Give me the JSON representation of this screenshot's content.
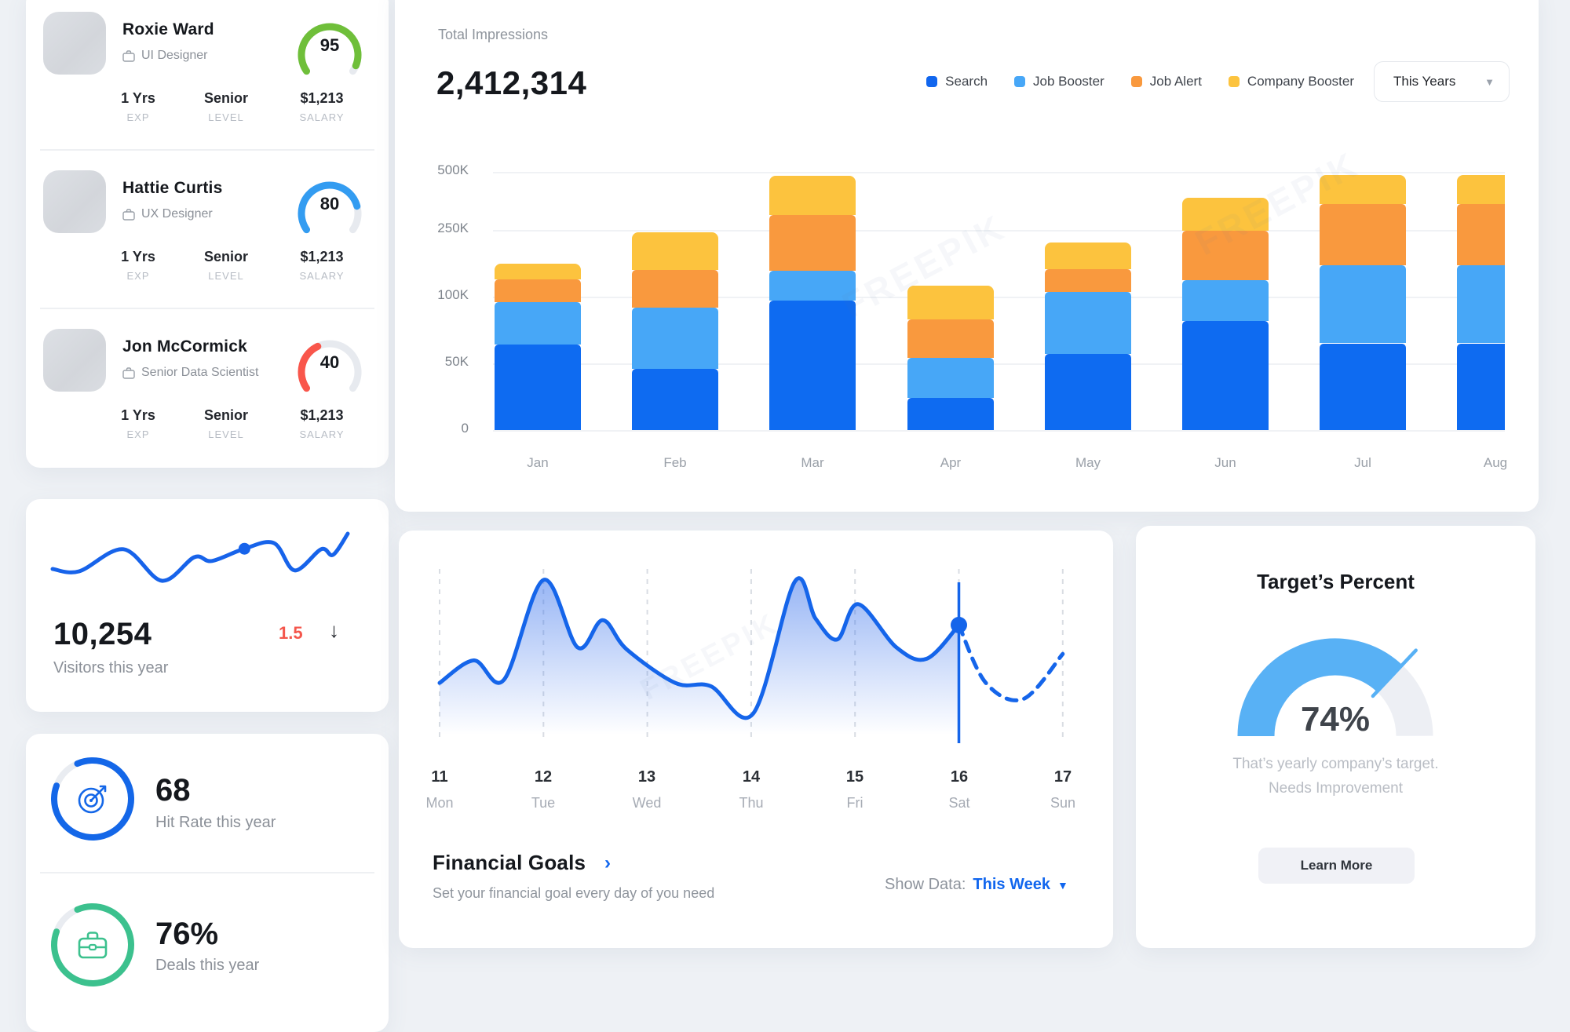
{
  "colors": {
    "accent_blue": "#1166ee",
    "light_blue": "#47a7f7",
    "orange": "#f9993e",
    "yellow": "#fcc33e",
    "green": "#6fbf3a",
    "red": "#f9564b",
    "emerald": "#3cc18e",
    "sky_blue": "#58b1f5",
    "gauge_track": "#e7eaef",
    "delta_red": "#f4564c",
    "spark_blue": "#1763ea"
  },
  "sidebar": {
    "employees": [
      {
        "name": "Roxie Ward",
        "role": "UI Designer",
        "exp": "1 Yrs",
        "exp_label": "EXP",
        "level": "Senior",
        "level_label": "LEVEL",
        "salary": "$1,213",
        "salary_label": "SALARY",
        "score": "95",
        "score_value": 95,
        "score_color": "#6fbf3a"
      },
      {
        "name": "Hattie Curtis",
        "role": "UX Designer",
        "exp": "1 Yrs",
        "exp_label": "EXP",
        "level": "Senior",
        "level_label": "LEVEL",
        "salary": "$1,213",
        "salary_label": "SALARY",
        "score": "80",
        "score_value": 80,
        "score_color": "#339cf1"
      },
      {
        "name": "Jon McCormick",
        "role": "Senior Data Scientist",
        "exp": "1 Yrs",
        "exp_label": "EXP",
        "level": "Senior",
        "level_label": "LEVEL",
        "salary": "$1,213",
        "salary_label": "SALARY",
        "score": "40",
        "score_value": 40,
        "score_color": "#f9564b"
      }
    ],
    "visitors": {
      "value": "10,254",
      "label": "Visitors this year",
      "delta": "1.5",
      "delta_direction": "down"
    },
    "hit_rate": {
      "value": "68",
      "label": "Hit Rate this year",
      "ring_percent": 87,
      "color": "#1467e8",
      "icon": "target-icon"
    },
    "deals": {
      "value": "76%",
      "label": "Deals this year",
      "ring_percent": 87,
      "color": "#3cc18e",
      "icon": "briefcase-icon"
    }
  },
  "impressions": {
    "title": "Total Impressions",
    "total": "2,412,314",
    "period": "This Years",
    "legend": [
      {
        "label": "Search",
        "color": "#1166ee"
      },
      {
        "label": "Job Booster",
        "color": "#47a7f7"
      },
      {
        "label": "Job Alert",
        "color": "#f9993e"
      },
      {
        "label": "Company Booster",
        "color": "#fcc33e"
      }
    ]
  },
  "financial": {
    "title": "Financial Goals",
    "subtitle": "Set your financial goal every day of you need",
    "show_data_label": "Show Data:",
    "show_data_value": "This Week",
    "days": [
      {
        "num": "11",
        "name": "Mon"
      },
      {
        "num": "12",
        "name": "Tue"
      },
      {
        "num": "13",
        "name": "Wed"
      },
      {
        "num": "14",
        "name": "Thu"
      },
      {
        "num": "15",
        "name": "Fri"
      },
      {
        "num": "16",
        "name": "Sat"
      },
      {
        "num": "17",
        "name": "Sun"
      }
    ]
  },
  "target": {
    "title": "Target’s Percent",
    "percent_label": "74%",
    "percent_value": 74,
    "desc_line1": "That’s yearly company’s target.",
    "desc_line2": "Needs Improvement",
    "button_label": "Learn More"
  },
  "chart_data": [
    {
      "id": "total-impressions-by-month",
      "type": "bar",
      "stacked": true,
      "title": "Total Impressions",
      "total_label": "2,412,314",
      "categories": [
        "Jan",
        "Feb",
        "Mar",
        "Apr",
        "May",
        "Jun",
        "Jul",
        "Aug"
      ],
      "series": [
        {
          "name": "Search",
          "color": "#0e6bf1",
          "values": [
            64000,
            46000,
            97000,
            24000,
            57000,
            82000,
            65000,
            65000
          ]
        },
        {
          "name": "Job Booster",
          "color": "#47a7f7",
          "values": [
            32000,
            46000,
            62000,
            30000,
            53000,
            55000,
            106000,
            106000
          ]
        },
        {
          "name": "Job Alert",
          "color": "#f9993e",
          "values": [
            42000,
            68000,
            155000,
            29000,
            51000,
            112000,
            190000,
            191000
          ]
        },
        {
          "name": "Company Booster",
          "color": "#fcc33e",
          "values": [
            36000,
            85000,
            170000,
            41000,
            61000,
            138000,
            125000,
            124000
          ]
        }
      ],
      "y_ticks": [
        "0",
        "50K",
        "100K",
        "250K",
        "500K"
      ],
      "y_tick_values": [
        0,
        50000,
        100000,
        250000,
        500000
      ],
      "axis_note": "non-linear y axis: tick labels evenly spaced",
      "legend_position": "top-right",
      "grid": "horizontal",
      "last_bar_clipped": true
    },
    {
      "id": "financial-goals-week",
      "type": "area",
      "x_labels_num": [
        "11",
        "12",
        "13",
        "14",
        "15",
        "16",
        "17"
      ],
      "x_labels_day": [
        "Mon",
        "Tue",
        "Wed",
        "Thu",
        "Fri",
        "Sat",
        "Sun"
      ],
      "value_scale": "relative 0-100",
      "solid_points": [
        [
          11.0,
          36
        ],
        [
          11.33,
          50
        ],
        [
          11.62,
          38
        ],
        [
          12.0,
          100
        ],
        [
          12.33,
          58
        ],
        [
          12.57,
          75
        ],
        [
          12.8,
          57
        ],
        [
          13.27,
          36
        ],
        [
          13.61,
          34
        ],
        [
          14.02,
          17
        ],
        [
          14.42,
          99
        ],
        [
          14.62,
          76
        ],
        [
          14.83,
          63
        ],
        [
          15.03,
          85
        ],
        [
          15.4,
          58
        ],
        [
          15.69,
          51
        ],
        [
          16.0,
          72
        ]
      ],
      "dashed_points": [
        [
          16.0,
          72
        ],
        [
          16.26,
          36
        ],
        [
          16.62,
          26
        ],
        [
          17.0,
          54
        ]
      ],
      "marker": {
        "x": 16,
        "y": 72,
        "note": "vertical reference line with dot at Sat 16"
      },
      "grid": "vertical-dashed",
      "line_color": "#1565ea"
    },
    {
      "id": "visitors-sparkline",
      "type": "line",
      "value_scale": "relative 0-100",
      "points": [
        [
          0,
          25
        ],
        [
          9,
          20
        ],
        [
          24,
          67
        ],
        [
          37,
          0
        ],
        [
          48,
          50
        ],
        [
          54,
          42
        ],
        [
          65,
          68
        ],
        [
          75,
          80
        ],
        [
          82,
          22
        ],
        [
          91,
          67
        ],
        [
          95,
          55
        ],
        [
          100,
          100
        ]
      ],
      "marker_index": 6,
      "line_color": "#1763ea"
    }
  ]
}
